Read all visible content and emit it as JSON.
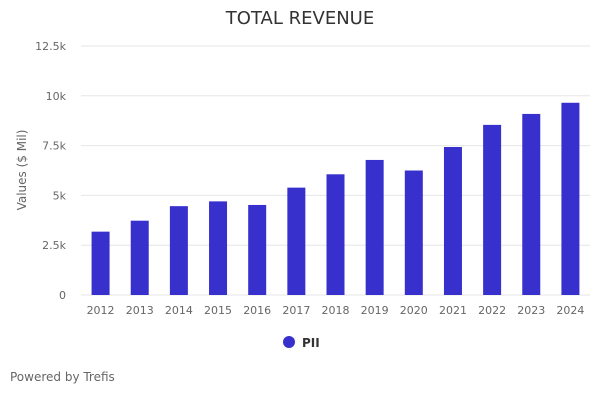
{
  "credits": "Powered by Trefis",
  "colors": {
    "series": "#3730cc",
    "grid": "#e6e6e6",
    "text": "#333333",
    "axis_text": "#666666"
  },
  "chart_data": {
    "type": "bar",
    "title": "TOTAL REVENUE",
    "xlabel": "",
    "ylabel": "Values ($ Mil)",
    "ylim": [
      0,
      12500
    ],
    "y_ticks": [
      0,
      2500,
      5000,
      7500,
      10000,
      12500
    ],
    "y_tick_labels": [
      "0",
      "2.5k",
      "5k",
      "7.5k",
      "10k",
      "12.5k"
    ],
    "grid": true,
    "legend_position": "bottom-center",
    "categories": [
      "2012",
      "2013",
      "2014",
      "2015",
      "2016",
      "2017",
      "2018",
      "2019",
      "2020",
      "2021",
      "2022",
      "2023",
      "2024"
    ],
    "series": [
      {
        "name": "PII",
        "color": "#3730cc",
        "values": [
          3180,
          3730,
          4460,
          4700,
          4520,
          5390,
          6060,
          6780,
          6250,
          7430,
          8540,
          9090,
          9650
        ]
      }
    ]
  }
}
